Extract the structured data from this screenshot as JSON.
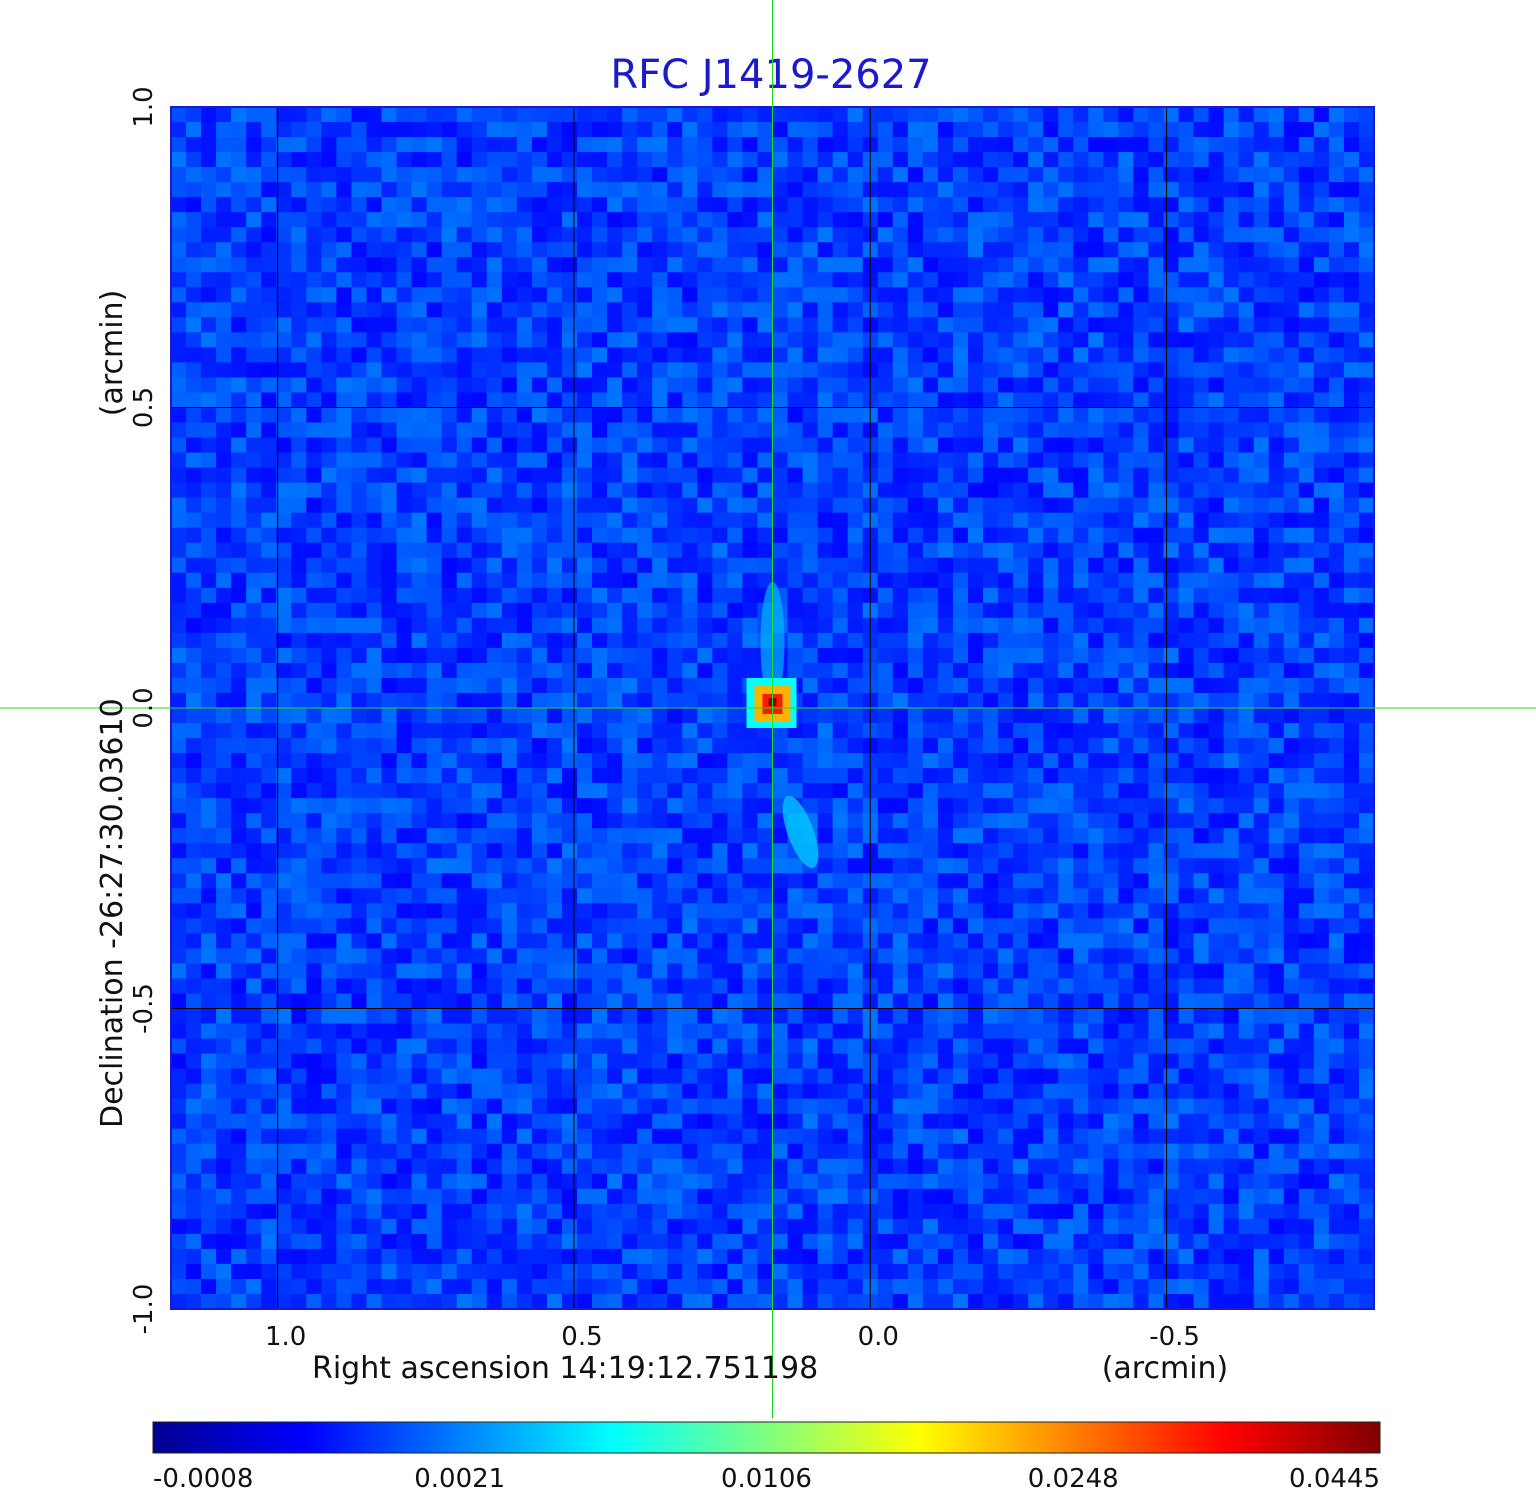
{
  "chart_data": {
    "type": "heatmap",
    "title": "RFC J1419-2627",
    "title_color": "#1a1acc",
    "colormap": "jet",
    "xlabel": "Right ascension  14:19:12.751198",
    "xunit": "(arcmin)",
    "ylabel": "Declination  -26:27:30.03610",
    "yunit": "(arcmin)",
    "xlim": [
      1.18,
      -0.85
    ],
    "ylim": [
      -1.0,
      1.0
    ],
    "x_ticks": [
      {
        "value": 1.0,
        "label": "1.0"
      },
      {
        "value": 0.5,
        "label": "0.5"
      },
      {
        "value": 0.0,
        "label": "0.0"
      },
      {
        "value": -0.5,
        "label": "-0.5"
      }
    ],
    "y_ticks": [
      {
        "value": 1.0,
        "label": "1.0"
      },
      {
        "value": 0.5,
        "label": "0.5"
      },
      {
        "value": 0.0,
        "label": "0.0"
      },
      {
        "value": -0.5,
        "label": "-0.5"
      },
      {
        "value": -1.0,
        "label": "-1.0"
      }
    ],
    "grid": true,
    "crosshair": {
      "x": 0.165,
      "y": 0.0,
      "color": "#22dd22"
    },
    "source_peak": {
      "x": 0.165,
      "y": 0.01,
      "value": 0.0445
    },
    "colorbar": {
      "ticks": [
        {
          "value": -0.0008,
          "label": "-0.0008"
        },
        {
          "value": 0.0021,
          "label": "0.0021"
        },
        {
          "value": 0.0106,
          "label": "0.0106"
        },
        {
          "value": 0.0248,
          "label": "0.0248"
        },
        {
          "value": 0.0445,
          "label": "0.0445"
        }
      ],
      "range": [
        -0.0008,
        0.0445
      ]
    }
  }
}
